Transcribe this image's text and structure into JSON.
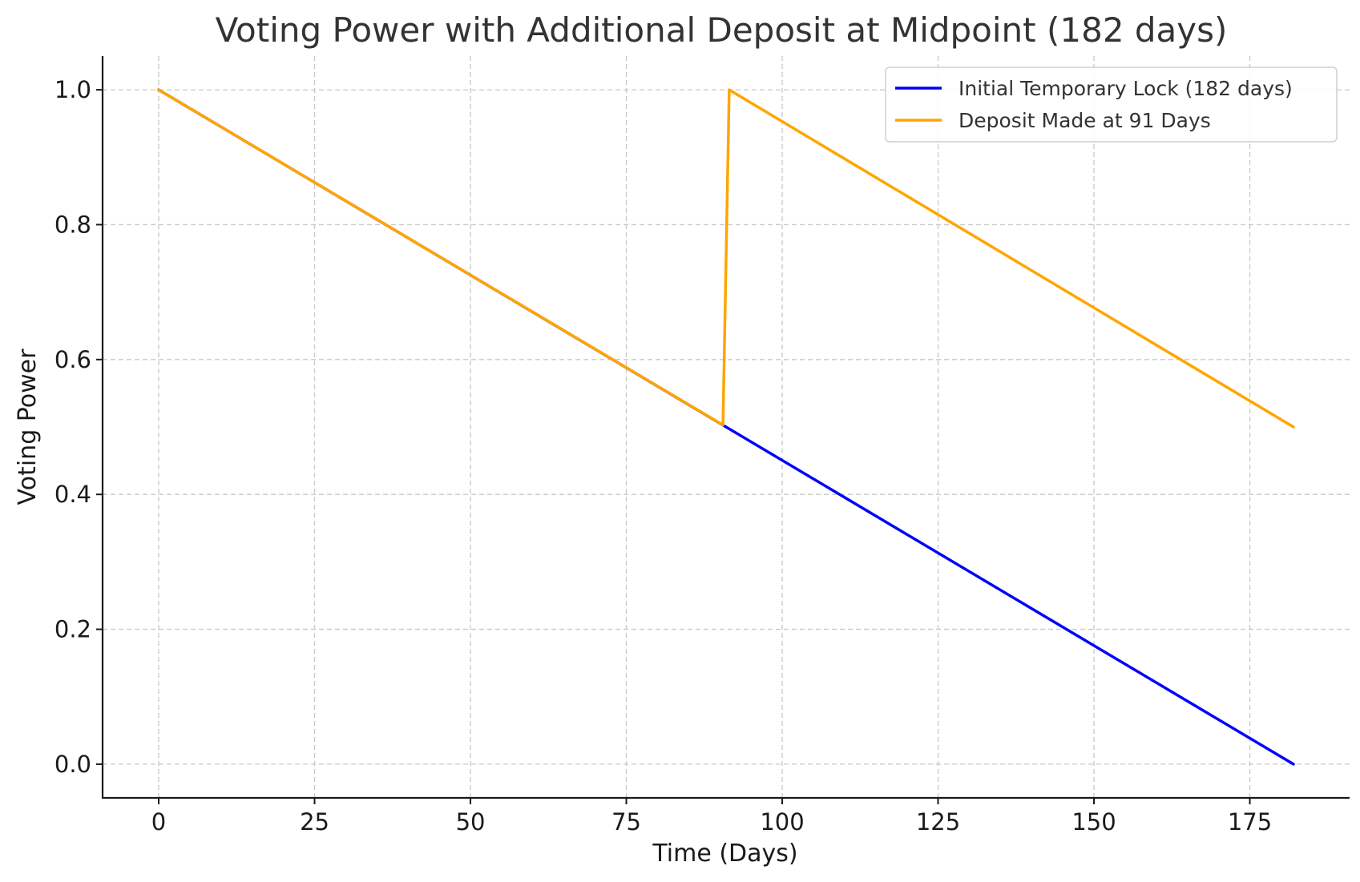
{
  "chart_data": {
    "type": "line",
    "title": "Voting Power with Additional Deposit at Midpoint (182 days)",
    "xlabel": "Time (Days)",
    "ylabel": "Voting Power",
    "xlim": [
      -9,
      191
    ],
    "ylim": [
      -0.05,
      1.05
    ],
    "xticks": [
      0,
      25,
      50,
      75,
      100,
      125,
      150,
      175
    ],
    "xtick_labels": [
      "0",
      "25",
      "50",
      "75",
      "100",
      "125",
      "150",
      "175"
    ],
    "yticks": [
      0.0,
      0.2,
      0.4,
      0.6,
      0.8,
      1.0
    ],
    "ytick_labels": [
      "0.0",
      "0.2",
      "0.4",
      "0.6",
      "0.8",
      "1.0"
    ],
    "grid": true,
    "legend_position": "top-right",
    "series": [
      {
        "name": "Initial Temporary Lock (182 days)",
        "color": "#0000ff",
        "x": [
          0,
          182
        ],
        "y": [
          1.0,
          0.0
        ]
      },
      {
        "name": "Deposit Made at 91 Days",
        "color": "#ffa500",
        "x": [
          0,
          90.5,
          91.5,
          182
        ],
        "y": [
          1.0,
          0.503,
          1.0,
          0.5
        ]
      }
    ]
  }
}
